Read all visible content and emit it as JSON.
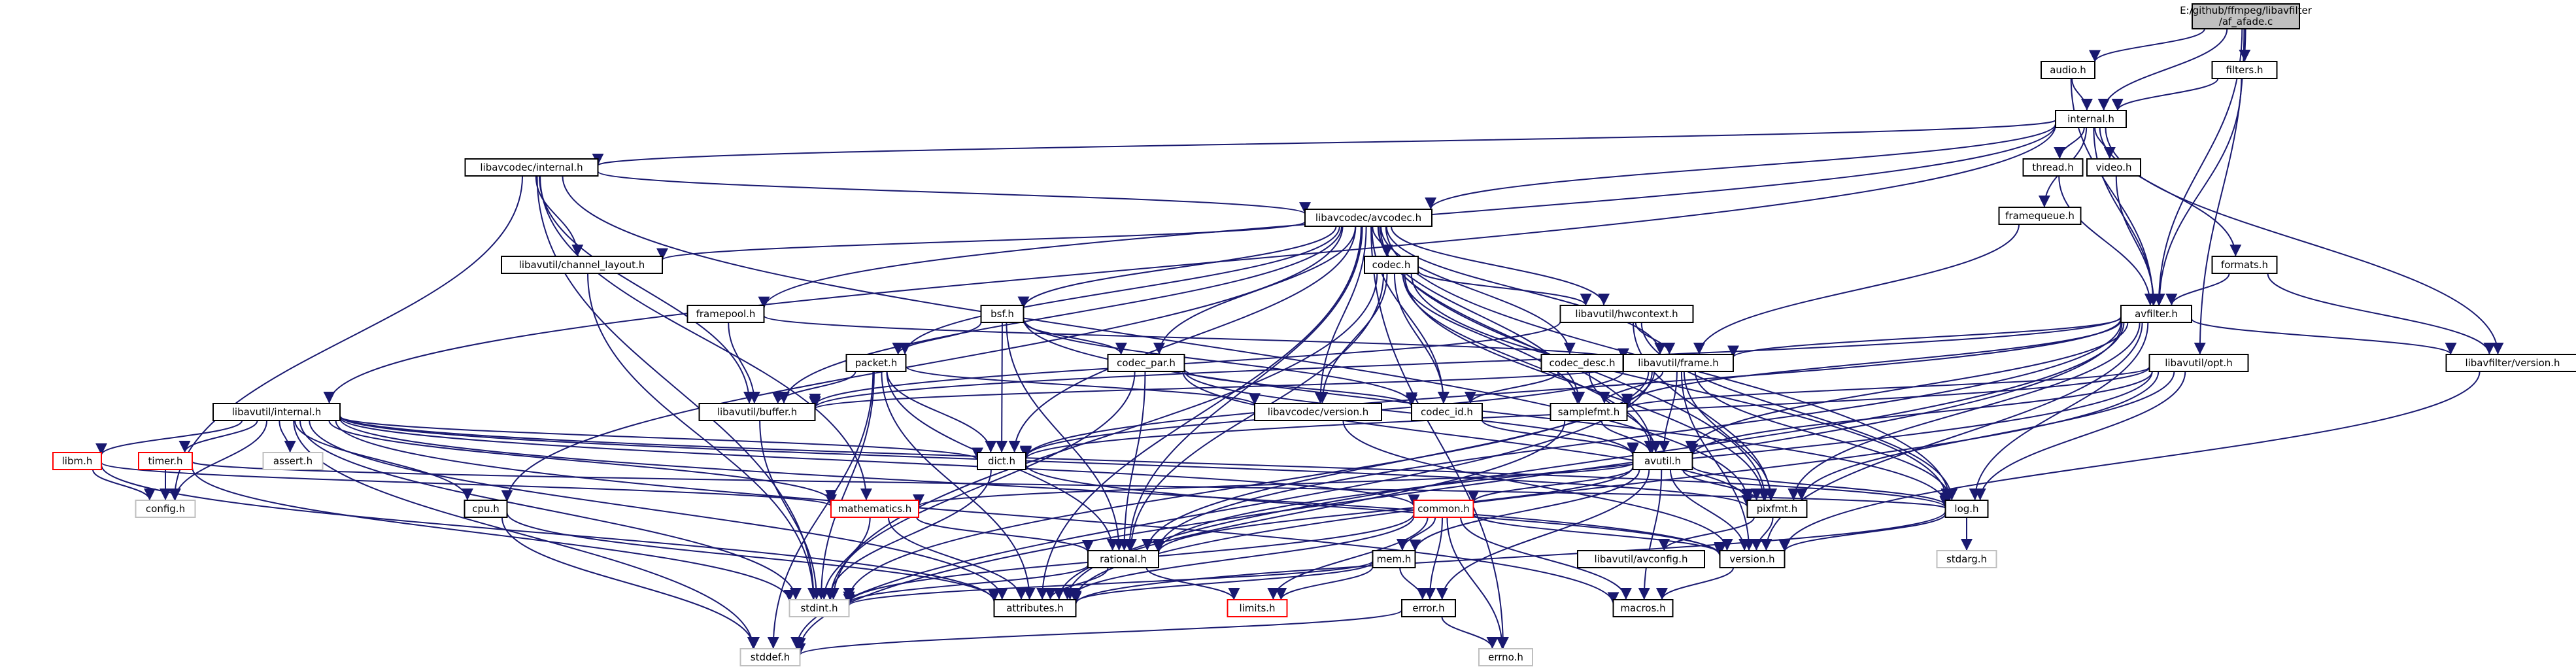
{
  "graph": {
    "root": {
      "line1": "E:/github/ffmpeg/libavfilter",
      "line2": "/af_afade.c"
    },
    "nodes": [
      {
        "id": "audio",
        "label": "audio.h"
      },
      {
        "id": "filters",
        "label": "filters.h"
      },
      {
        "id": "internal",
        "label": "internal.h"
      },
      {
        "id": "lavc_internal",
        "label": "libavcodec/internal.h"
      },
      {
        "id": "thread",
        "label": "thread.h"
      },
      {
        "id": "video",
        "label": "video.h"
      },
      {
        "id": "framequeue",
        "label": "framequeue.h"
      },
      {
        "id": "avcodec",
        "label": "libavcodec/avcodec.h"
      },
      {
        "id": "formats",
        "label": "formats.h"
      },
      {
        "id": "chlayout",
        "label": "libavutil/channel_layout.h"
      },
      {
        "id": "codec",
        "label": "codec.h"
      },
      {
        "id": "avfilter",
        "label": "avfilter.h"
      },
      {
        "id": "framepool",
        "label": "framepool.h"
      },
      {
        "id": "bsf",
        "label": "bsf.h"
      },
      {
        "id": "hwcontext",
        "label": "libavutil/hwcontext.h"
      },
      {
        "id": "opt",
        "label": "libavutil/opt.h"
      },
      {
        "id": "codec_desc",
        "label": "codec_desc.h"
      },
      {
        "id": "lavf_version",
        "label": "libavfilter/version.h"
      },
      {
        "id": "frame",
        "label": "libavutil/frame.h"
      },
      {
        "id": "packet",
        "label": "packet.h"
      },
      {
        "id": "codec_par",
        "label": "codec_par.h"
      },
      {
        "id": "lavu_internal",
        "label": "libavutil/internal.h"
      },
      {
        "id": "buffer",
        "label": "libavutil/buffer.h"
      },
      {
        "id": "lavc_version",
        "label": "libavcodec/version.h"
      },
      {
        "id": "codec_id",
        "label": "codec_id.h"
      },
      {
        "id": "samplefmt",
        "label": "samplefmt.h"
      },
      {
        "id": "libm",
        "label": "libm.h",
        "style": "red"
      },
      {
        "id": "timer",
        "label": "timer.h",
        "style": "red"
      },
      {
        "id": "assert",
        "label": "assert.h",
        "style": "gray"
      },
      {
        "id": "dict",
        "label": "dict.h"
      },
      {
        "id": "avutil",
        "label": "avutil.h"
      },
      {
        "id": "config",
        "label": "config.h",
        "style": "gray"
      },
      {
        "id": "cpu",
        "label": "cpu.h"
      },
      {
        "id": "mathematics",
        "label": "mathematics.h",
        "style": "red"
      },
      {
        "id": "pixfmt",
        "label": "pixfmt.h"
      },
      {
        "id": "common",
        "label": "common.h",
        "style": "red"
      },
      {
        "id": "log",
        "label": "log.h"
      },
      {
        "id": "rational",
        "label": "rational.h"
      },
      {
        "id": "mem",
        "label": "mem.h"
      },
      {
        "id": "avconfig",
        "label": "libavutil/avconfig.h"
      },
      {
        "id": "version",
        "label": "version.h"
      },
      {
        "id": "stdarg",
        "label": "stdarg.h",
        "style": "gray"
      },
      {
        "id": "stdint",
        "label": "stdint.h",
        "style": "gray"
      },
      {
        "id": "attributes",
        "label": "attributes.h"
      },
      {
        "id": "limits",
        "label": "limits.h",
        "style": "red"
      },
      {
        "id": "macros",
        "label": "macros.h"
      },
      {
        "id": "error",
        "label": "error.h"
      },
      {
        "id": "stddef",
        "label": "stddef.h",
        "style": "gray"
      },
      {
        "id": "errno",
        "label": "errno.h",
        "style": "gray"
      }
    ],
    "edges": [
      [
        "root",
        "audio"
      ],
      [
        "root",
        "filters"
      ],
      [
        "root",
        "internal"
      ],
      [
        "root",
        "avfilter"
      ],
      [
        "root",
        "opt"
      ],
      [
        "audio",
        "internal"
      ],
      [
        "audio",
        "avfilter"
      ],
      [
        "filters",
        "internal"
      ],
      [
        "filters",
        "avfilter"
      ],
      [
        "internal",
        "lavc_internal"
      ],
      [
        "internal",
        "thread"
      ],
      [
        "internal",
        "video"
      ],
      [
        "internal",
        "framequeue"
      ],
      [
        "internal",
        "avcodec"
      ],
      [
        "internal",
        "formats"
      ],
      [
        "internal",
        "avfilter"
      ],
      [
        "internal",
        "framepool"
      ],
      [
        "internal",
        "lavu_internal"
      ],
      [
        "internal",
        "lavf_version"
      ],
      [
        "video",
        "avfilter"
      ],
      [
        "thread",
        "avfilter"
      ],
      [
        "framequeue",
        "frame"
      ],
      [
        "formats",
        "avfilter"
      ],
      [
        "formats",
        "lavf_version"
      ],
      [
        "lavc_internal",
        "avcodec"
      ],
      [
        "lavc_internal",
        "chlayout"
      ],
      [
        "lavc_internal",
        "buffer"
      ],
      [
        "lavc_internal",
        "config"
      ],
      [
        "lavc_internal",
        "stdint"
      ],
      [
        "lavc_internal",
        "pixfmt"
      ],
      [
        "lavc_internal",
        "mathematics"
      ],
      [
        "avcodec",
        "chlayout"
      ],
      [
        "avcodec",
        "codec"
      ],
      [
        "avcodec",
        "bsf"
      ],
      [
        "avcodec",
        "hwcontext"
      ],
      [
        "avcodec",
        "codec_desc"
      ],
      [
        "avcodec",
        "frame"
      ],
      [
        "avcodec",
        "packet"
      ],
      [
        "avcodec",
        "codec_par"
      ],
      [
        "avcodec",
        "buffer"
      ],
      [
        "avcodec",
        "lavc_version"
      ],
      [
        "avcodec",
        "codec_id"
      ],
      [
        "avcodec",
        "samplefmt"
      ],
      [
        "avcodec",
        "dict"
      ],
      [
        "avcodec",
        "avutil"
      ],
      [
        "avcodec",
        "cpu"
      ],
      [
        "avcodec",
        "log"
      ],
      [
        "avcodec",
        "pixfmt"
      ],
      [
        "avcodec",
        "rational"
      ],
      [
        "avcodec",
        "attributes"
      ],
      [
        "avcodec",
        "errno"
      ],
      [
        "chlayout",
        "stdint"
      ],
      [
        "codec",
        "hwcontext"
      ],
      [
        "codec",
        "lavc_version"
      ],
      [
        "codec",
        "codec_id"
      ],
      [
        "codec",
        "samplefmt"
      ],
      [
        "codec",
        "avutil"
      ],
      [
        "codec",
        "log"
      ],
      [
        "codec",
        "pixfmt"
      ],
      [
        "codec",
        "rational"
      ],
      [
        "codec",
        "stdint"
      ],
      [
        "avfilter",
        "frame"
      ],
      [
        "avfilter",
        "buffer"
      ],
      [
        "avfilter",
        "samplefmt"
      ],
      [
        "avfilter",
        "dict"
      ],
      [
        "avfilter",
        "avutil"
      ],
      [
        "avfilter",
        "log"
      ],
      [
        "avfilter",
        "pixfmt"
      ],
      [
        "avfilter",
        "rational"
      ],
      [
        "avfilter",
        "lavf_version"
      ],
      [
        "avfilter",
        "attributes"
      ],
      [
        "avfilter",
        "stddef"
      ],
      [
        "avfilter",
        "version"
      ],
      [
        "framepool",
        "buffer"
      ],
      [
        "framepool",
        "frame"
      ],
      [
        "bsf",
        "packet"
      ],
      [
        "bsf",
        "codec_par"
      ],
      [
        "bsf",
        "codec_id"
      ],
      [
        "bsf",
        "dict"
      ],
      [
        "bsf",
        "log"
      ],
      [
        "bsf",
        "rational"
      ],
      [
        "hwcontext",
        "frame"
      ],
      [
        "hwcontext",
        "buffer"
      ],
      [
        "hwcontext",
        "pixfmt"
      ],
      [
        "hwcontext",
        "log"
      ],
      [
        "opt",
        "samplefmt"
      ],
      [
        "opt",
        "dict"
      ],
      [
        "opt",
        "avutil"
      ],
      [
        "opt",
        "log"
      ],
      [
        "opt",
        "pixfmt"
      ],
      [
        "opt",
        "rational"
      ],
      [
        "opt",
        "attributes"
      ],
      [
        "codec_desc",
        "codec_id"
      ],
      [
        "codec_desc",
        "avutil"
      ],
      [
        "lavf_version",
        "version"
      ],
      [
        "frame",
        "buffer"
      ],
      [
        "frame",
        "samplefmt"
      ],
      [
        "frame",
        "dict"
      ],
      [
        "frame",
        "avutil"
      ],
      [
        "frame",
        "pixfmt"
      ],
      [
        "frame",
        "rational"
      ],
      [
        "frame",
        "version"
      ],
      [
        "frame",
        "stdint"
      ],
      [
        "frame",
        "stddef"
      ],
      [
        "frame",
        "log"
      ],
      [
        "packet",
        "buffer"
      ],
      [
        "packet",
        "dict"
      ],
      [
        "packet",
        "rational"
      ],
      [
        "packet",
        "lavc_version"
      ],
      [
        "packet",
        "attributes"
      ],
      [
        "packet",
        "stdint"
      ],
      [
        "packet",
        "stddef"
      ],
      [
        "codec_par",
        "codec_id"
      ],
      [
        "codec_par",
        "avutil"
      ],
      [
        "codec_par",
        "pixfmt"
      ],
      [
        "codec_par",
        "rational"
      ],
      [
        "codec_par",
        "stdint"
      ],
      [
        "lavu_internal",
        "libm"
      ],
      [
        "lavu_internal",
        "timer"
      ],
      [
        "lavu_internal",
        "assert"
      ],
      [
        "lavu_internal",
        "config"
      ],
      [
        "lavu_internal",
        "dict"
      ],
      [
        "lavu_internal",
        "cpu"
      ],
      [
        "lavu_internal",
        "mathematics"
      ],
      [
        "lavu_internal",
        "pixfmt"
      ],
      [
        "lavu_internal",
        "common"
      ],
      [
        "lavu_internal",
        "log"
      ],
      [
        "lavu_internal",
        "stdint"
      ],
      [
        "lavu_internal",
        "attributes"
      ],
      [
        "lavu_internal",
        "macros"
      ],
      [
        "lavu_internal",
        "stddef"
      ],
      [
        "lavu_internal",
        "version"
      ],
      [
        "buffer",
        "stdint"
      ],
      [
        "lavc_version",
        "version"
      ],
      [
        "codec_id",
        "avutil"
      ],
      [
        "samplefmt",
        "avutil"
      ],
      [
        "samplefmt",
        "attributes"
      ],
      [
        "libm",
        "config"
      ],
      [
        "libm",
        "attributes"
      ],
      [
        "libm",
        "mathematics"
      ],
      [
        "timer",
        "config"
      ],
      [
        "timer",
        "log"
      ],
      [
        "timer",
        "stdint"
      ],
      [
        "dict",
        "stdint"
      ],
      [
        "dict",
        "version"
      ],
      [
        "avutil",
        "common"
      ],
      [
        "avutil",
        "rational"
      ],
      [
        "avutil",
        "version"
      ],
      [
        "avutil",
        "macros"
      ],
      [
        "avutil",
        "mathematics"
      ],
      [
        "avutil",
        "log"
      ],
      [
        "avutil",
        "pixfmt"
      ],
      [
        "avutil",
        "error"
      ],
      [
        "avutil",
        "mem"
      ],
      [
        "cpu",
        "attributes"
      ],
      [
        "cpu",
        "stddef"
      ],
      [
        "mathematics",
        "stdint"
      ],
      [
        "mathematics",
        "attributes"
      ],
      [
        "mathematics",
        "rational"
      ],
      [
        "pixfmt",
        "version"
      ],
      [
        "pixfmt",
        "avconfig"
      ],
      [
        "common",
        "attributes"
      ],
      [
        "common",
        "macros"
      ],
      [
        "common",
        "version"
      ],
      [
        "common",
        "mem"
      ],
      [
        "common",
        "error"
      ],
      [
        "common",
        "errno"
      ],
      [
        "common",
        "limits"
      ],
      [
        "common",
        "stdint"
      ],
      [
        "log",
        "version"
      ],
      [
        "log",
        "attributes"
      ],
      [
        "log",
        "stdarg"
      ],
      [
        "rational",
        "stdint"
      ],
      [
        "rational",
        "limits"
      ],
      [
        "rational",
        "attributes"
      ],
      [
        "mem",
        "attributes"
      ],
      [
        "mem",
        "error"
      ],
      [
        "mem",
        "limits"
      ],
      [
        "mem",
        "stdint"
      ],
      [
        "version",
        "macros"
      ],
      [
        "error",
        "errno"
      ],
      [
        "error",
        "stddef"
      ]
    ]
  }
}
